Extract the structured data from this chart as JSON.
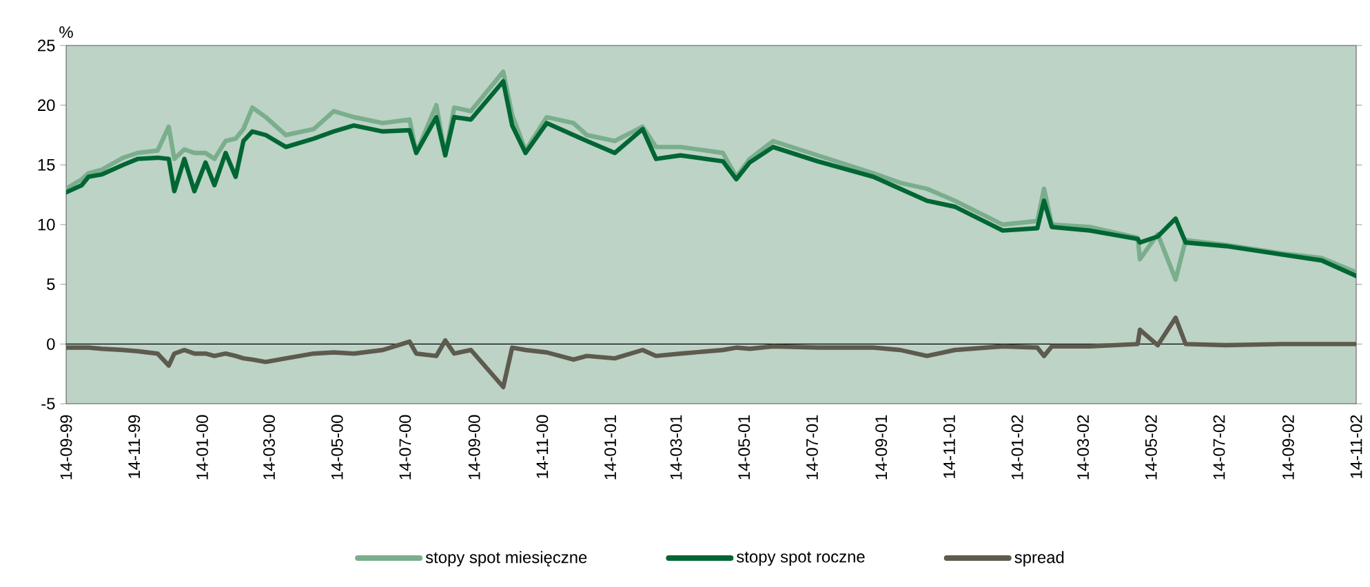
{
  "chart_data": {
    "type": "line",
    "ylabel": "%",
    "legend": "bottom",
    "x": [
      "1999-09-14",
      "1999-09-28",
      "1999-10-04",
      "1999-10-16",
      "1999-11-04",
      "1999-11-17",
      "1999-12-05",
      "1999-12-15",
      "1999-12-20",
      "1999-12-29",
      "2000-01-07",
      "2000-01-17",
      "2000-01-25",
      "2000-02-04",
      "2000-02-13",
      "2000-02-20",
      "2000-02-28",
      "2000-03-11",
      "2000-03-29",
      "2000-04-23",
      "2000-05-11",
      "2000-05-29",
      "2000-06-24",
      "2000-07-18",
      "2000-07-24",
      "2000-08-11",
      "2000-08-19",
      "2000-08-27",
      "2000-09-11",
      "2000-10-10",
      "2000-10-18",
      "2000-10-30",
      "2000-11-18",
      "2000-12-12",
      "2000-12-24",
      "2001-01-18",
      "2001-02-12",
      "2001-02-24",
      "2001-03-18",
      "2001-04-25",
      "2001-05-07",
      "2001-05-19",
      "2001-06-09",
      "2001-07-19",
      "2001-09-07",
      "2001-10-01",
      "2001-10-25",
      "2001-11-19",
      "2002-01-01",
      "2002-02-01",
      "2002-02-07",
      "2002-02-14",
      "2002-03-20",
      "2002-05-02",
      "2002-05-04",
      "2002-05-20",
      "2002-06-05",
      "2002-06-14",
      "2002-07-20",
      "2002-09-08",
      "2002-10-14",
      "2002-11-14"
    ],
    "series": [
      {
        "name": "stopy spot miesięczne",
        "color": "#7aae8c",
        "values": [
          13.0,
          13.8,
          14.3,
          14.6,
          15.6,
          16.0,
          16.2,
          18.2,
          15.5,
          16.3,
          16.0,
          16.0,
          15.5,
          17.0,
          17.2,
          18.0,
          19.8,
          19.0,
          17.5,
          18.0,
          19.5,
          19.0,
          18.5,
          18.8,
          16.0,
          20.0,
          15.8,
          19.8,
          19.5,
          22.8,
          19.2,
          16.2,
          19.0,
          18.5,
          17.5,
          17.0,
          18.2,
          16.5,
          16.5,
          16.0,
          14.0,
          15.5,
          17.0,
          15.8,
          14.3,
          13.5,
          13.0,
          12.0,
          10.0,
          10.3,
          13.0,
          10.0,
          9.8,
          8.9,
          7.1,
          9.2,
          5.4,
          8.7,
          8.3,
          7.6,
          7.2,
          6.0
        ]
      },
      {
        "name": "stopy spot roczne",
        "color": "#006633",
        "values": [
          12.7,
          13.3,
          14.0,
          14.2,
          15.0,
          15.5,
          15.6,
          15.5,
          12.8,
          15.5,
          12.8,
          15.2,
          13.3,
          16.0,
          14.0,
          17.0,
          17.8,
          17.5,
          16.5,
          17.2,
          17.8,
          18.3,
          17.8,
          17.9,
          16.0,
          19.0,
          15.8,
          19.0,
          18.8,
          22.0,
          18.3,
          16.0,
          18.5,
          17.5,
          17.0,
          16.0,
          18.0,
          15.5,
          15.8,
          15.3,
          13.8,
          15.2,
          16.5,
          15.3,
          14.0,
          13.0,
          12.0,
          11.5,
          9.5,
          9.7,
          12.0,
          9.8,
          9.5,
          8.8,
          8.5,
          9.0,
          10.5,
          8.5,
          8.2,
          7.5,
          7.0,
          5.7
        ]
      },
      {
        "name": "spread",
        "color": "#5e5a4e",
        "values": [
          -0.3,
          -0.3,
          -0.3,
          -0.4,
          -0.5,
          -0.6,
          -0.8,
          -1.8,
          -0.8,
          -0.5,
          -0.8,
          -0.8,
          -1.0,
          -0.8,
          -1.0,
          -1.2,
          -1.3,
          -1.5,
          -1.2,
          -0.8,
          -0.7,
          -0.8,
          -0.5,
          0.2,
          -0.8,
          -1.0,
          0.3,
          -0.8,
          -0.5,
          -3.6,
          -0.3,
          -0.5,
          -0.7,
          -1.3,
          -1.0,
          -1.2,
          -0.5,
          -1.0,
          -0.8,
          -0.5,
          -0.3,
          -0.4,
          -0.2,
          -0.3,
          -0.3,
          -0.5,
          -1.0,
          -0.5,
          -0.2,
          -0.3,
          -1.0,
          -0.2,
          -0.2,
          0.0,
          1.2,
          -0.1,
          2.2,
          0.0,
          -0.1,
          0.0,
          0.0,
          0.0
        ]
      }
    ],
    "xlim": [
      "1999-09-14",
      "2002-11-14"
    ],
    "xticks": [
      {
        "value": "1999-09-14",
        "label": "14-09-99"
      },
      {
        "value": "1999-11-14",
        "label": "14-11-99"
      },
      {
        "value": "2000-01-14",
        "label": "14-01-00"
      },
      {
        "value": "2000-03-14",
        "label": "14-03-00"
      },
      {
        "value": "2000-05-14",
        "label": "14-05-00"
      },
      {
        "value": "2000-07-14",
        "label": "14-07-00"
      },
      {
        "value": "2000-09-14",
        "label": "14-09-00"
      },
      {
        "value": "2000-11-14",
        "label": "14-11-00"
      },
      {
        "value": "2001-01-14",
        "label": "14-01-01"
      },
      {
        "value": "2001-03-14",
        "label": "14-03-01"
      },
      {
        "value": "2001-05-14",
        "label": "14-05-01"
      },
      {
        "value": "2001-07-14",
        "label": "14-07-01"
      },
      {
        "value": "2001-09-14",
        "label": "14-09-01"
      },
      {
        "value": "2001-11-14",
        "label": "14-11-01"
      },
      {
        "value": "2002-01-14",
        "label": "14-01-02"
      },
      {
        "value": "2002-03-14",
        "label": "14-03-02"
      },
      {
        "value": "2002-05-14",
        "label": "14-05-02"
      },
      {
        "value": "2002-07-14",
        "label": "14-07-02"
      },
      {
        "value": "2002-09-14",
        "label": "14-09-02"
      },
      {
        "value": "2002-11-14",
        "label": "14-11-02"
      }
    ],
    "ylim": [
      -5,
      25
    ],
    "yticks": [
      -5,
      0,
      5,
      10,
      15,
      20,
      25
    ],
    "ref_lines": [
      {
        "axis": "y",
        "value": 0,
        "color": "#000000"
      }
    ]
  }
}
